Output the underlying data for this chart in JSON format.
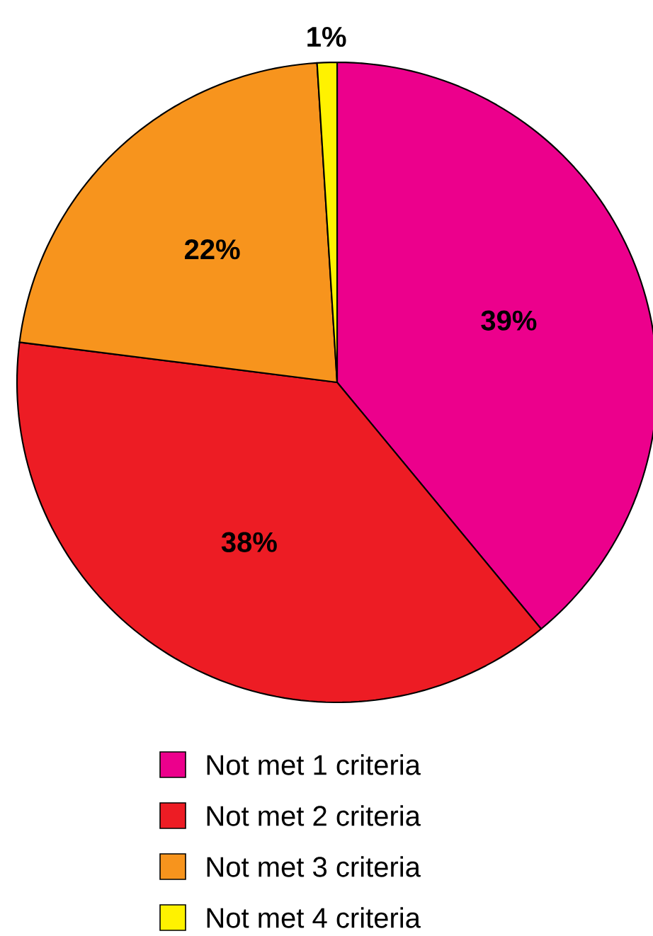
{
  "chart_data": {
    "type": "pie",
    "categories": [
      "Not met 1 criteria",
      "Not met 2 criteria",
      "Not met 3 criteria",
      "Not met 4 criteria"
    ],
    "values": [
      39,
      38,
      22,
      1
    ],
    "value_labels": [
      "39%",
      "38%",
      "22%",
      "1%"
    ],
    "colors": [
      "#ec008c",
      "#ed1c24",
      "#f7941d",
      "#fff200"
    ],
    "legend": "bottom"
  }
}
